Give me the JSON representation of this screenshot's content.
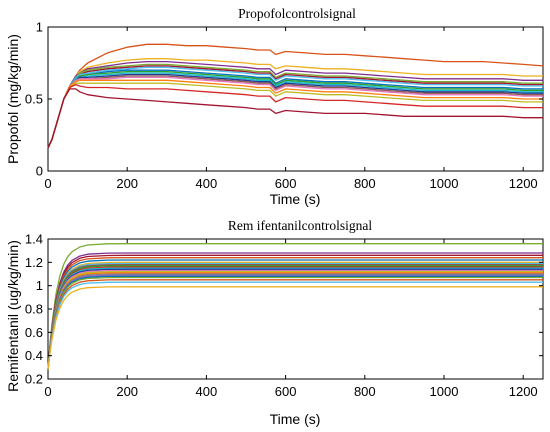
{
  "chart_data": [
    {
      "type": "line",
      "title": "Propofolcontrolsignal",
      "xlabel": "Time (s)",
      "ylabel": "Propofol (mg/kg/min)",
      "xlim": [
        0,
        1250
      ],
      "ylim": [
        0,
        1
      ],
      "xticks": [
        0,
        200,
        400,
        600,
        800,
        1000,
        1200
      ],
      "yticks": [
        0,
        0.5,
        1
      ],
      "ytick_labels": [
        "0",
        "0.5",
        "1"
      ],
      "grid": false,
      "legend": "none",
      "x": [
        0,
        10,
        25,
        40,
        55,
        70,
        80,
        100,
        150,
        200,
        250,
        300,
        350,
        400,
        450,
        500,
        530,
        560,
        575,
        600,
        650,
        700,
        750,
        800,
        850,
        900,
        950,
        1000,
        1050,
        1100,
        1150,
        1200,
        1250
      ],
      "series": [
        {
          "color": "#D95319",
          "values": [
            0.16,
            0.22,
            0.36,
            0.5,
            0.59,
            0.66,
            0.7,
            0.75,
            0.82,
            0.86,
            0.88,
            0.88,
            0.87,
            0.87,
            0.86,
            0.85,
            0.84,
            0.84,
            0.81,
            0.83,
            0.82,
            0.81,
            0.81,
            0.8,
            0.79,
            0.78,
            0.77,
            0.76,
            0.76,
            0.76,
            0.75,
            0.74,
            0.73
          ]
        },
        {
          "color": "#EDB120",
          "values": [
            0.16,
            0.22,
            0.36,
            0.5,
            0.59,
            0.66,
            0.69,
            0.72,
            0.75,
            0.77,
            0.78,
            0.78,
            0.77,
            0.77,
            0.76,
            0.75,
            0.74,
            0.74,
            0.71,
            0.73,
            0.72,
            0.71,
            0.71,
            0.7,
            0.69,
            0.68,
            0.67,
            0.67,
            0.67,
            0.67,
            0.67,
            0.66,
            0.66
          ]
        },
        {
          "color": "#7E2F8E",
          "values": [
            0.16,
            0.22,
            0.36,
            0.5,
            0.59,
            0.66,
            0.68,
            0.71,
            0.73,
            0.75,
            0.76,
            0.76,
            0.75,
            0.74,
            0.73,
            0.72,
            0.71,
            0.71,
            0.67,
            0.7,
            0.69,
            0.68,
            0.68,
            0.67,
            0.66,
            0.65,
            0.64,
            0.64,
            0.64,
            0.64,
            0.64,
            0.63,
            0.63
          ]
        },
        {
          "color": "#77AC30",
          "values": [
            0.16,
            0.22,
            0.36,
            0.5,
            0.59,
            0.65,
            0.68,
            0.7,
            0.72,
            0.73,
            0.74,
            0.74,
            0.73,
            0.72,
            0.71,
            0.7,
            0.69,
            0.69,
            0.65,
            0.68,
            0.67,
            0.66,
            0.66,
            0.65,
            0.64,
            0.63,
            0.62,
            0.62,
            0.62,
            0.62,
            0.62,
            0.61,
            0.61
          ]
        },
        {
          "color": "#A2142F",
          "values": [
            0.16,
            0.22,
            0.36,
            0.5,
            0.59,
            0.65,
            0.67,
            0.69,
            0.71,
            0.72,
            0.73,
            0.73,
            0.72,
            0.71,
            0.7,
            0.69,
            0.68,
            0.68,
            0.64,
            0.67,
            0.66,
            0.65,
            0.65,
            0.64,
            0.63,
            0.62,
            0.61,
            0.61,
            0.61,
            0.61,
            0.61,
            0.6,
            0.6
          ]
        },
        {
          "color": "#4DBEEE",
          "values": [
            0.16,
            0.22,
            0.36,
            0.5,
            0.59,
            0.65,
            0.67,
            0.68,
            0.7,
            0.71,
            0.72,
            0.72,
            0.71,
            0.7,
            0.69,
            0.68,
            0.67,
            0.67,
            0.63,
            0.66,
            0.65,
            0.64,
            0.64,
            0.63,
            0.62,
            0.61,
            0.6,
            0.6,
            0.6,
            0.6,
            0.6,
            0.59,
            0.59
          ]
        },
        {
          "color": "#0072BD",
          "values": [
            0.16,
            0.22,
            0.36,
            0.5,
            0.59,
            0.64,
            0.66,
            0.67,
            0.69,
            0.7,
            0.7,
            0.7,
            0.69,
            0.68,
            0.67,
            0.66,
            0.65,
            0.65,
            0.61,
            0.64,
            0.63,
            0.62,
            0.62,
            0.61,
            0.6,
            0.59,
            0.58,
            0.58,
            0.58,
            0.58,
            0.58,
            0.57,
            0.57
          ]
        },
        {
          "color": "#2CA02C",
          "values": [
            0.16,
            0.22,
            0.36,
            0.5,
            0.59,
            0.64,
            0.66,
            0.67,
            0.68,
            0.69,
            0.69,
            0.69,
            0.68,
            0.67,
            0.66,
            0.65,
            0.64,
            0.64,
            0.6,
            0.63,
            0.62,
            0.61,
            0.61,
            0.6,
            0.59,
            0.58,
            0.57,
            0.57,
            0.57,
            0.57,
            0.57,
            0.56,
            0.56
          ]
        },
        {
          "color": "#17BECF",
          "values": [
            0.16,
            0.22,
            0.36,
            0.5,
            0.59,
            0.64,
            0.65,
            0.66,
            0.67,
            0.68,
            0.68,
            0.68,
            0.67,
            0.66,
            0.65,
            0.64,
            0.63,
            0.63,
            0.59,
            0.62,
            0.61,
            0.6,
            0.6,
            0.59,
            0.58,
            0.57,
            0.56,
            0.56,
            0.56,
            0.56,
            0.56,
            0.55,
            0.55
          ]
        },
        {
          "color": "#1F3A93",
          "values": [
            0.16,
            0.22,
            0.36,
            0.5,
            0.59,
            0.63,
            0.65,
            0.65,
            0.66,
            0.67,
            0.67,
            0.67,
            0.66,
            0.65,
            0.64,
            0.63,
            0.62,
            0.62,
            0.58,
            0.61,
            0.6,
            0.59,
            0.59,
            0.58,
            0.57,
            0.56,
            0.55,
            0.55,
            0.55,
            0.55,
            0.55,
            0.54,
            0.54
          ]
        },
        {
          "color": "#8C564B",
          "values": [
            0.16,
            0.22,
            0.36,
            0.5,
            0.59,
            0.63,
            0.64,
            0.64,
            0.65,
            0.66,
            0.66,
            0.66,
            0.65,
            0.64,
            0.63,
            0.62,
            0.61,
            0.61,
            0.57,
            0.6,
            0.59,
            0.58,
            0.58,
            0.57,
            0.56,
            0.55,
            0.54,
            0.54,
            0.54,
            0.54,
            0.54,
            0.53,
            0.53
          ]
        },
        {
          "color": "#E377C2",
          "values": [
            0.16,
            0.22,
            0.36,
            0.5,
            0.59,
            0.63,
            0.64,
            0.64,
            0.64,
            0.65,
            0.65,
            0.65,
            0.64,
            0.63,
            0.62,
            0.61,
            0.6,
            0.6,
            0.56,
            0.59,
            0.58,
            0.57,
            0.57,
            0.56,
            0.55,
            0.54,
            0.53,
            0.53,
            0.53,
            0.53,
            0.53,
            0.52,
            0.52
          ]
        },
        {
          "color": "#FF7F0E",
          "values": [
            0.16,
            0.22,
            0.36,
            0.5,
            0.59,
            0.62,
            0.63,
            0.63,
            0.63,
            0.63,
            0.63,
            0.63,
            0.62,
            0.61,
            0.6,
            0.59,
            0.58,
            0.58,
            0.54,
            0.57,
            0.56,
            0.55,
            0.55,
            0.54,
            0.53,
            0.52,
            0.51,
            0.51,
            0.51,
            0.51,
            0.51,
            0.5,
            0.5
          ]
        },
        {
          "color": "#BCBD22",
          "values": [
            0.16,
            0.22,
            0.36,
            0.5,
            0.58,
            0.61,
            0.61,
            0.61,
            0.61,
            0.61,
            0.61,
            0.61,
            0.6,
            0.59,
            0.58,
            0.57,
            0.56,
            0.56,
            0.52,
            0.55,
            0.54,
            0.53,
            0.53,
            0.52,
            0.51,
            0.5,
            0.49,
            0.49,
            0.49,
            0.49,
            0.49,
            0.48,
            0.48
          ]
        },
        {
          "color": "#D62728",
          "values": [
            0.16,
            0.22,
            0.36,
            0.5,
            0.58,
            0.6,
            0.59,
            0.58,
            0.58,
            0.57,
            0.57,
            0.57,
            0.56,
            0.55,
            0.54,
            0.53,
            0.52,
            0.52,
            0.48,
            0.51,
            0.5,
            0.49,
            0.49,
            0.48,
            0.47,
            0.46,
            0.45,
            0.45,
            0.45,
            0.45,
            0.45,
            0.44,
            0.44
          ]
        },
        {
          "color": "#A2142F",
          "values": [
            0.16,
            0.22,
            0.36,
            0.5,
            0.57,
            0.57,
            0.55,
            0.53,
            0.51,
            0.5,
            0.49,
            0.48,
            0.47,
            0.46,
            0.45,
            0.44,
            0.43,
            0.43,
            0.4,
            0.42,
            0.41,
            0.4,
            0.4,
            0.4,
            0.39,
            0.38,
            0.38,
            0.38,
            0.38,
            0.38,
            0.38,
            0.37,
            0.37
          ]
        }
      ]
    },
    {
      "type": "line",
      "title": "Rem ifentanilcontrolsignal",
      "xlabel": "Time (s)",
      "ylabel": "Remifentanil (ug/kg/min)",
      "xlim": [
        0,
        1250
      ],
      "ylim": [
        0.2,
        1.4
      ],
      "xticks": [
        0,
        200,
        400,
        600,
        800,
        1000,
        1200
      ],
      "yticks": [
        0.2,
        0.4,
        0.6,
        0.8,
        1.0,
        1.2,
        1.4
      ],
      "ytick_labels": [
        "0.2",
        "0.4",
        "0.6",
        "0.8",
        "1",
        "1.2",
        "1.4"
      ],
      "grid": false,
      "legend": "none",
      "x": [
        0,
        5,
        10,
        20,
        30,
        40,
        50,
        60,
        80,
        100,
        150,
        200,
        300,
        400,
        600,
        800,
        1000,
        1250
      ],
      "final_values": [
        1.36,
        1.28,
        1.26,
        1.24,
        1.22,
        1.2,
        1.19,
        1.18,
        1.17,
        1.16,
        1.15,
        1.14,
        1.13,
        1.12,
        1.11,
        1.1,
        1.09,
        1.08,
        1.07,
        1.05,
        1.03,
        0.99
      ],
      "series": [
        {
          "color": "#77AC30",
          "final": 1.36
        },
        {
          "color": "#7E2F8E",
          "final": 1.28
        },
        {
          "color": "#A2142F",
          "final": 1.26
        },
        {
          "color": "#D95319",
          "final": 1.24
        },
        {
          "color": "#0072BD",
          "final": 1.22
        },
        {
          "color": "#EDB120",
          "final": 1.2
        },
        {
          "color": "#4DBEEE",
          "final": 1.19
        },
        {
          "color": "#8C564B",
          "final": 1.18
        },
        {
          "color": "#2CA02C",
          "final": 1.17
        },
        {
          "color": "#D62728",
          "final": 1.16
        },
        {
          "color": "#17BECF",
          "final": 1.15
        },
        {
          "color": "#1F3A93",
          "final": 1.14
        },
        {
          "color": "#E377C2",
          "final": 1.13
        },
        {
          "color": "#BCBD22",
          "final": 1.12
        },
        {
          "color": "#FF7F0E",
          "final": 1.11
        },
        {
          "color": "#7F7F7F",
          "final": 1.1
        },
        {
          "color": "#9467BD",
          "final": 1.09
        },
        {
          "color": "#0072BD",
          "final": 1.08
        },
        {
          "color": "#77AC30",
          "final": 1.07
        },
        {
          "color": "#D95319",
          "final": 1.05
        },
        {
          "color": "#4DBEEE",
          "final": 1.03
        },
        {
          "color": "#EDB120",
          "final": 0.99
        }
      ]
    }
  ]
}
